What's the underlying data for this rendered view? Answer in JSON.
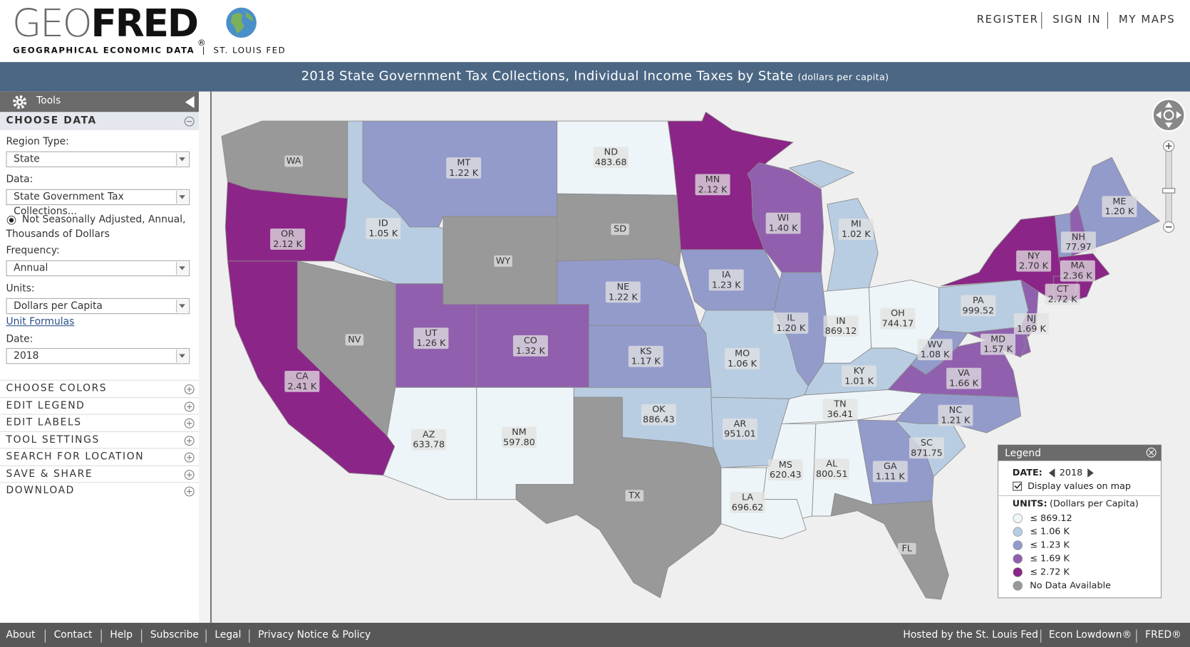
{
  "header": {
    "logo_geo": "GEO",
    "logo_fred": "FRED",
    "logo_reg": "®",
    "tagline_left": "GEOGRAPHICAL ECONOMIC DATA",
    "tagline_sep": "|",
    "tagline_right": "ST. LOUIS FED",
    "nav": [
      "REGISTER",
      "SIGN IN",
      "MY MAPS"
    ]
  },
  "title": {
    "text": "2018 State Government Tax Collections, Individual Income Taxes by State",
    "units": "(dollars per capita)"
  },
  "sidebar": {
    "tools": "Tools",
    "choose_data": "CHOOSE DATA",
    "region_type_label": "Region Type:",
    "region_type": "State",
    "data_label": "Data:",
    "data": "State Government Tax Collections...",
    "radio_line1": "Not Seasonally Adjusted, Annual,",
    "radio_line2": "Thousands of Dollars",
    "frequency_label": "Frequency:",
    "frequency": "Annual",
    "units_label": "Units:",
    "units": "Dollars per Capita",
    "unit_formulas": "Unit Formulas",
    "date_label": "Date:",
    "date": "2018",
    "sections": [
      "CHOOSE COLORS",
      "EDIT LEGEND",
      "EDIT LABELS",
      "TOOL SETTINGS",
      "SEARCH FOR LOCATION",
      "SAVE & SHARE",
      "DOWNLOAD"
    ]
  },
  "map": {
    "states": [
      {
        "code": "WA"
      },
      {
        "code": "MT",
        "value": "1.22 K"
      },
      {
        "code": "ND",
        "value": "483.68"
      },
      {
        "code": "SD"
      },
      {
        "code": "MN",
        "value": "2.12 K"
      },
      {
        "code": "OR",
        "value": "2.12 K"
      },
      {
        "code": "ID",
        "value": "1.05 K"
      },
      {
        "code": "WY"
      },
      {
        "code": "WI",
        "value": "1.40 K"
      },
      {
        "code": "MI",
        "value": "1.02 K"
      },
      {
        "code": "ME",
        "value": "1.20 K"
      },
      {
        "code": "NH",
        "value": "77.97"
      },
      {
        "code": "NY",
        "value": "2.70 K"
      },
      {
        "code": "MA",
        "value": "2.36 K"
      },
      {
        "code": "CT",
        "value": "2.72 K"
      },
      {
        "code": "IA",
        "value": "1.23 K"
      },
      {
        "code": "NE",
        "value": "1.22 K"
      },
      {
        "code": "NV"
      },
      {
        "code": "UT",
        "value": "1.26 K"
      },
      {
        "code": "CO",
        "value": "1.32 K"
      },
      {
        "code": "KS",
        "value": "1.17 K"
      },
      {
        "code": "IL",
        "value": "1.20 K"
      },
      {
        "code": "IN",
        "value": "869.12"
      },
      {
        "code": "OH",
        "value": "744.17"
      },
      {
        "code": "PA",
        "value": "999.52"
      },
      {
        "code": "NJ",
        "value": "1.69 K"
      },
      {
        "code": "MD",
        "value": "1.57 K"
      },
      {
        "code": "WV",
        "value": "1.08 K"
      },
      {
        "code": "VA",
        "value": "1.66 K"
      },
      {
        "code": "KY",
        "value": "1.01 K"
      },
      {
        "code": "MO",
        "value": "1.06 K"
      },
      {
        "code": "CA",
        "value": "2.41 K"
      },
      {
        "code": "TN",
        "value": "36.41"
      },
      {
        "code": "NC",
        "value": "1.21 K"
      },
      {
        "code": "OK",
        "value": "886.43"
      },
      {
        "code": "AR",
        "value": "951.01"
      },
      {
        "code": "AZ",
        "value": "633.78"
      },
      {
        "code": "NM",
        "value": "597.80"
      },
      {
        "code": "SC",
        "value": "871.75"
      },
      {
        "code": "GA",
        "value": "1.11 K"
      },
      {
        "code": "MS",
        "value": "620.43"
      },
      {
        "code": "AL",
        "value": "800.51"
      },
      {
        "code": "LA",
        "value": "696.62"
      },
      {
        "code": "TX"
      },
      {
        "code": "FL"
      }
    ]
  },
  "legend": {
    "title": "Legend",
    "date_label": "DATE:",
    "date": "2018",
    "display_values": "Display values on map",
    "units_label": "UNITS:",
    "units": "(Dollars per Capita)",
    "items": [
      {
        "label": "≤ 869.12",
        "color": "#eef5f8"
      },
      {
        "label": "≤ 1.06 K",
        "color": "#b8cde2"
      },
      {
        "label": "≤ 1.23 K",
        "color": "#939bcb"
      },
      {
        "label": "≤ 1.69 K",
        "color": "#9060ae"
      },
      {
        "label": "≤ 2.72 K",
        "color": "#8c2588"
      },
      {
        "label": "No Data Available",
        "color": "#999999"
      }
    ]
  },
  "footer": {
    "left": [
      "About",
      "Contact",
      "Help",
      "Subscribe",
      "Legal",
      "Privacy Notice & Policy"
    ],
    "right": [
      "Hosted by the St. Louis Fed",
      "Econ Lowdown®",
      "FRED®"
    ]
  }
}
